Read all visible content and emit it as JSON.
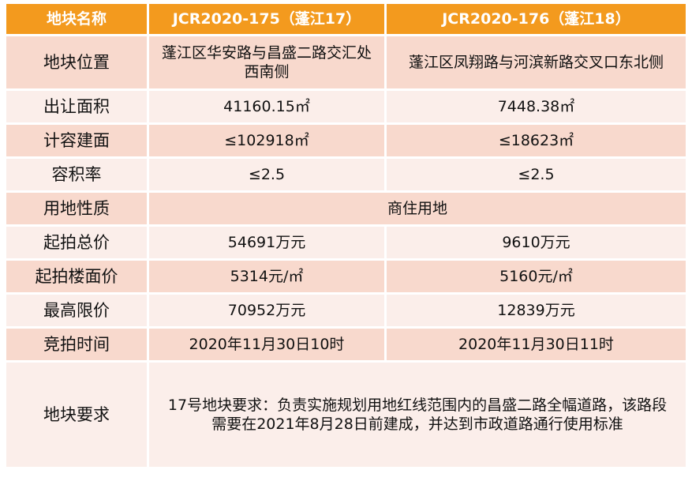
{
  "header": {
    "col1": "地块名称",
    "col2": "JCR2020-175（蓬江17）",
    "col3": "JCR2020-176（蓬江18）"
  },
  "rows": {
    "location": {
      "label": "地块位置",
      "v1": "蓬江区华安路与昌盛二路交汇处西南侧",
      "v2": "蓬江区凤翔路与河滨新路交叉口东北侧"
    },
    "area": {
      "label": "出让面积",
      "v1": "41160.15㎡",
      "v2": "7448.38㎡"
    },
    "floor_area": {
      "label": "计容建面",
      "v1": "≤102918㎡",
      "v2": "≤18623㎡"
    },
    "far": {
      "label": "容积率",
      "v1": "≤2.5",
      "v2": "≤2.5"
    },
    "land_use": {
      "label": "用地性质",
      "value": "商住用地"
    },
    "start_price": {
      "label": "起拍总价",
      "v1": "54691万元",
      "v2": "9610万元"
    },
    "start_floor_price": {
      "label": "起拍楼面价",
      "v1": "5314元/㎡",
      "v2": "5160元/㎡"
    },
    "max_price": {
      "label": "最高限价",
      "v1": "70952万元",
      "v2": "12839万元"
    },
    "auction_time": {
      "label": "竞拍时间",
      "v1": "2020年11月30日10时",
      "v2": "2020年11月30日11时"
    },
    "requirements": {
      "label": "地块要求",
      "value": "17号地块要求：负责实施规划用地红线范围内的昌盛二路全幅道路，该路段需要在2021年8月28日前建成，并达到市政道路通行使用标准"
    }
  },
  "colors": {
    "header_bg": "#f39a1e",
    "row_dark": "#f8d9cd",
    "row_light": "#fbeeea"
  }
}
